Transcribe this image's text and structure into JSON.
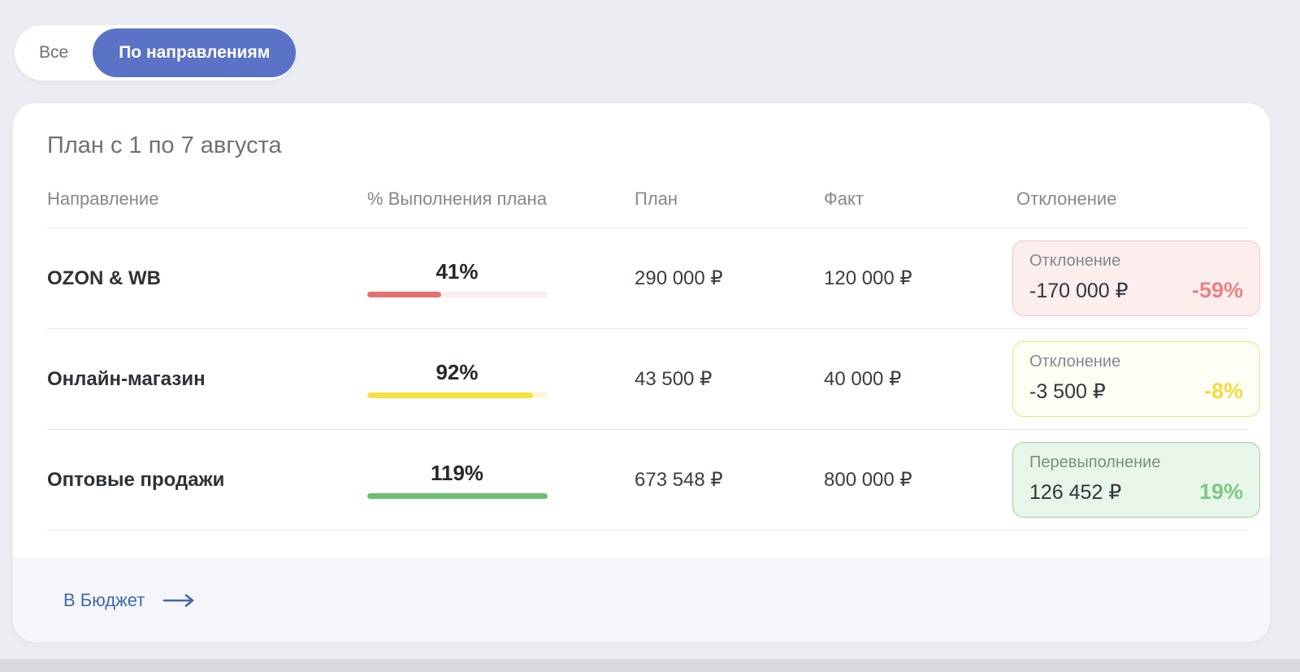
{
  "toggle": {
    "all_label": "Все",
    "by_direction_label": "По направлениям"
  },
  "card": {
    "title": "План с 1 по 7 августа",
    "columns": {
      "direction": "Направление",
      "percent": "% Выполнения плана",
      "plan": "План",
      "fact": "Факт",
      "deviation": "Отклонение"
    },
    "rows": [
      {
        "direction": "OZON & WB",
        "percent_label": "41%",
        "percent_value": 41,
        "plan": "290 000 ₽",
        "fact": "120 000 ₽",
        "badge": {
          "label": "Отклонение",
          "amount": "-170 000 ₽",
          "percent": "-59%",
          "status": "negative"
        }
      },
      {
        "direction": "Онлайн-магазин",
        "percent_label": "92%",
        "percent_value": 92,
        "plan": "43 500 ₽",
        "fact": "40 000 ₽",
        "badge": {
          "label": "Отклонение",
          "amount": "-3 500 ₽",
          "percent": "-8%",
          "status": "warning"
        }
      },
      {
        "direction": "Оптовые продажи",
        "percent_label": "119%",
        "percent_value": 119,
        "plan": "673 548 ₽",
        "fact": "800 000 ₽",
        "badge": {
          "label": "Перевыполнение",
          "amount": "126 452 ₽",
          "percent": "19%",
          "status": "positive"
        }
      }
    ],
    "footer_link_label": "В Бюджет"
  },
  "colors": {
    "accent_blue": "#5b73c6",
    "bar_red": "#e57070",
    "bar_yellow": "#f7e042",
    "bar_green": "#6cbe72",
    "badge_negative_bg": "#fdeeee",
    "badge_warning_bg": "#fffef4",
    "badge_positive_bg": "#e7f6e8",
    "link_blue": "#4266b1",
    "page_bg": "#ecedf2"
  }
}
